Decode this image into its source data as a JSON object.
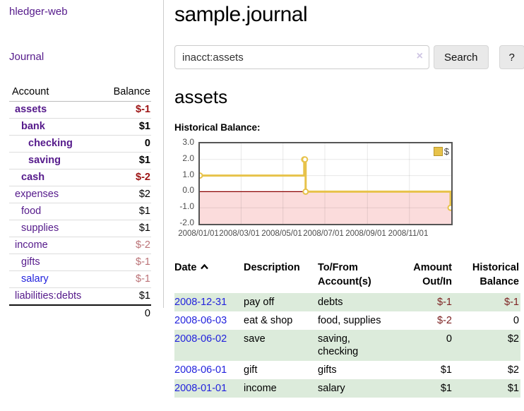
{
  "sidebar": {
    "brand": "hledger-web",
    "journal_link": "Journal",
    "accounts_table": {
      "headers": {
        "account": "Account",
        "balance": "Balance"
      },
      "rows": [
        {
          "name": "assets",
          "balance": "$-1"
        },
        {
          "name": "bank",
          "balance": "$1"
        },
        {
          "name": "checking",
          "balance": "0"
        },
        {
          "name": "saving",
          "balance": "$1"
        },
        {
          "name": "cash",
          "balance": "$-2"
        },
        {
          "name": "expenses",
          "balance": "$2"
        },
        {
          "name": "food",
          "balance": "$1"
        },
        {
          "name": "supplies",
          "balance": "$1"
        },
        {
          "name": "income",
          "balance": "$-2"
        },
        {
          "name": "gifts",
          "balance": "$-1"
        },
        {
          "name": "salary",
          "balance": "$-1"
        },
        {
          "name": "liabilities:debts",
          "balance": "$1"
        }
      ],
      "total": "0"
    }
  },
  "main": {
    "title": "sample.journal",
    "account_heading": "assets",
    "chart_label": "Historical Balance:"
  },
  "search": {
    "value": "inacct:assets",
    "clear_icon": "×",
    "button_label": "Search",
    "help_label": "?"
  },
  "chart_data": {
    "type": "line",
    "title": "Historical Balance:",
    "legend": "$",
    "series": [
      {
        "name": "$",
        "color": "#e7c24a",
        "step": true,
        "points": [
          [
            "2008-01-01",
            1
          ],
          [
            "2008-06-01",
            2
          ],
          [
            "2008-06-02",
            2
          ],
          [
            "2008-06-03",
            0
          ],
          [
            "2008-12-31",
            -1
          ]
        ]
      }
    ],
    "x_range": [
      "2008-01-01",
      "2009-01-01"
    ],
    "ylim": [
      -2,
      3
    ],
    "x_ticks": [
      "2008/01/01",
      "2008/03/01",
      "2008/05/01",
      "2008/07/01",
      "2008/09/01",
      "2008/11/01"
    ],
    "y_ticks": [
      "3.0",
      "2.0",
      "1.0",
      "0.0",
      "-1.0",
      "-2.0"
    ],
    "grid": true,
    "legend_position": "top-right",
    "negative_fill": "#fbdcdc",
    "zero_line_color": "#8b0000"
  },
  "register": {
    "headers": {
      "date": "Date",
      "description": "Description",
      "accounts": "To/From Account(s)",
      "amount": "Amount Out/In",
      "balance": "Historical Balance"
    },
    "rows": [
      {
        "date": "2008-12-31",
        "description": "pay off",
        "accounts": "debts",
        "amount": "$-1",
        "balance": "$-1"
      },
      {
        "date": "2008-06-03",
        "description": "eat & shop",
        "accounts": "food, supplies",
        "amount": "$-2",
        "balance": "0"
      },
      {
        "date": "2008-06-02",
        "description": "save",
        "accounts": "saving, checking",
        "amount": "0",
        "balance": "$2"
      },
      {
        "date": "2008-06-01",
        "description": "gift",
        "accounts": "gifts",
        "amount": "$1",
        "balance": "$2"
      },
      {
        "date": "2008-01-01",
        "description": "income",
        "accounts": "salary",
        "amount": "$1",
        "balance": "$1"
      }
    ]
  }
}
